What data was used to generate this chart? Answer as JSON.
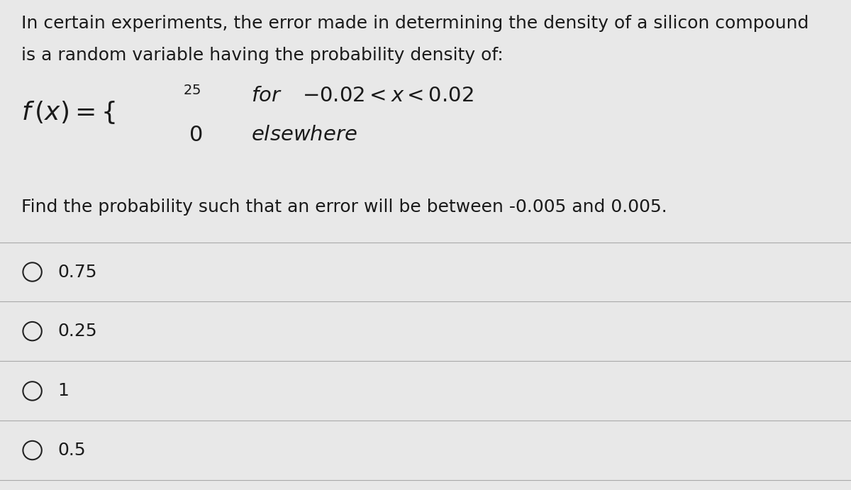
{
  "background_color": "#e8e8e8",
  "text_color": "#1a1a1a",
  "title_line1": "In certain experiments, the error made in determining the density of a silicon compound",
  "title_line2": "is a random variable having the probability density of:",
  "question": "Find the probability such that an error will be between -0.005 and 0.005.",
  "options": [
    "0.75",
    "0.25",
    "1",
    "0.5"
  ],
  "font_size_title": 18,
  "font_size_formula": 22,
  "font_size_options": 18,
  "divider_color": "#aaaaaa",
  "circle_color": "#222222"
}
